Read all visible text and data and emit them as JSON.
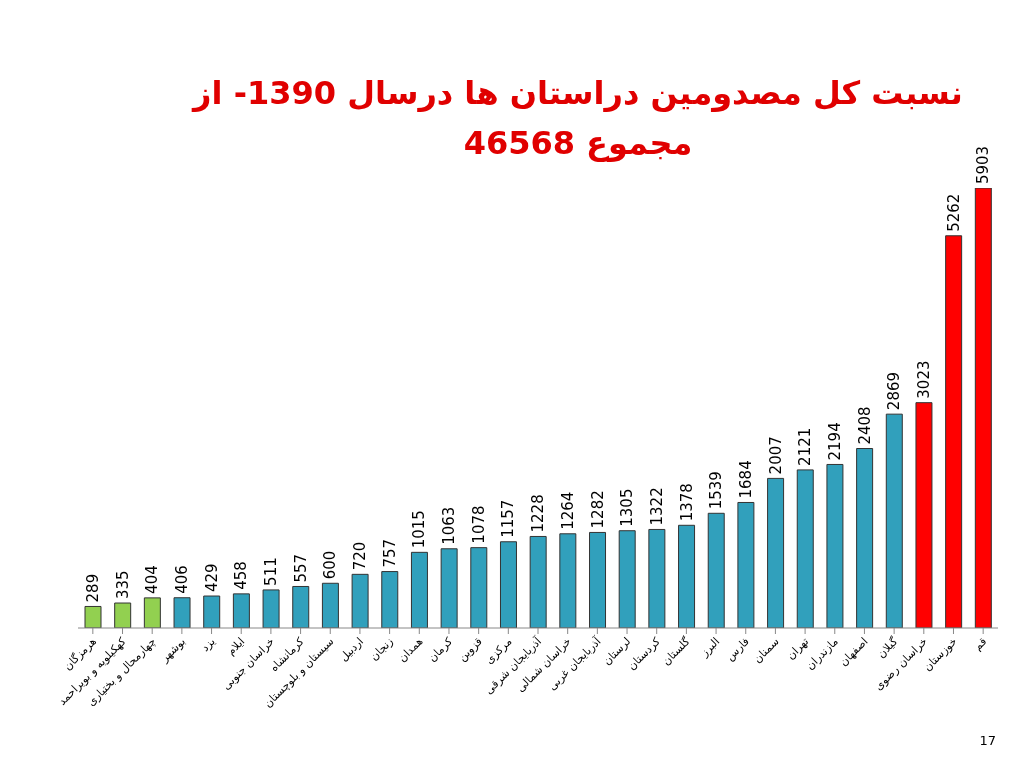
{
  "chart_data": {
    "type": "bar",
    "title": "نسبت کل مصدومین دراستان ها درسال 1390- از مجموع 46568",
    "categories": [
      "هرمزگان",
      "کهکیلویه و بویراحمد",
      "چهارمحال و بختیاری",
      "بوشهر",
      "یزد",
      "ایلام",
      "خراسان جنوبی",
      "کرمانشاه",
      "سیستان و بلوچستان",
      "اردبیل",
      "زنجان",
      "همدان",
      "کرمان",
      "قزوین",
      "مرکزی",
      "آذربایجان شرقی",
      "خراسان شمالی",
      "آذربایجان غربی",
      "لرستان",
      "کردستان",
      "گلستان",
      "البرز",
      "فارس",
      "سمنان",
      "تهران",
      "مازندران",
      "اصفهان",
      "گیلان",
      "خراسان رضوی",
      "خوزستان",
      "قم"
    ],
    "values": [
      289,
      335,
      404,
      406,
      429,
      458,
      511,
      557,
      600,
      720,
      757,
      1015,
      1063,
      1078,
      1157,
      1228,
      1264,
      1282,
      1305,
      1322,
      1378,
      1539,
      1684,
      2007,
      2121,
      2194,
      2408,
      2869,
      3023,
      5262,
      5903
    ],
    "colors": [
      "#92d050",
      "#92d050",
      "#92d050",
      "#31a0bc",
      "#31a0bc",
      "#31a0bc",
      "#31a0bc",
      "#31a0bc",
      "#31a0bc",
      "#31a0bc",
      "#31a0bc",
      "#31a0bc",
      "#31a0bc",
      "#31a0bc",
      "#31a0bc",
      "#31a0bc",
      "#31a0bc",
      "#31a0bc",
      "#31a0bc",
      "#31a0bc",
      "#31a0bc",
      "#31a0bc",
      "#31a0bc",
      "#31a0bc",
      "#31a0bc",
      "#31a0bc",
      "#31a0bc",
      "#31a0bc",
      "#ff0000",
      "#ff0000",
      "#ff0000"
    ],
    "data_labels": true,
    "grid": false,
    "legend": false,
    "annotations": [
      "17"
    ]
  }
}
